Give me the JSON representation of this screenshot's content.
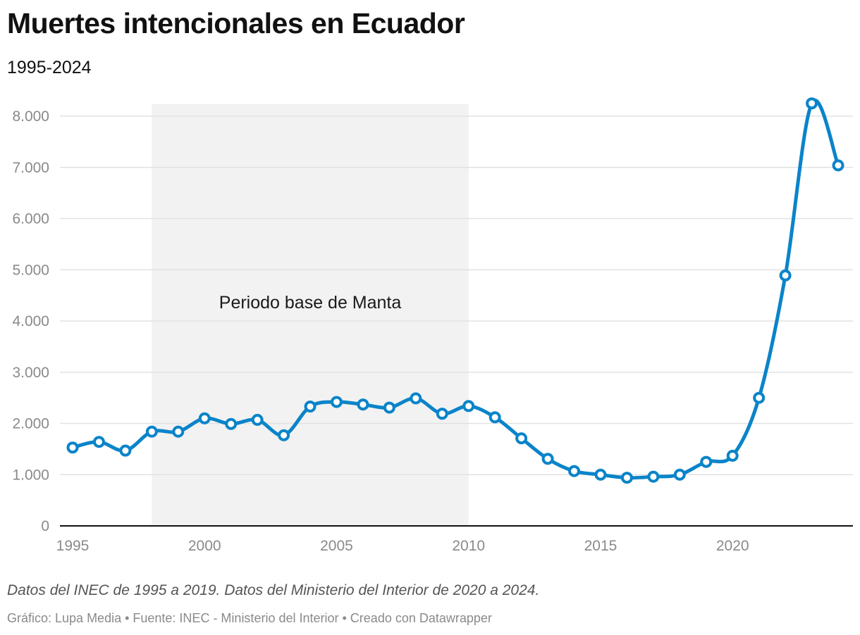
{
  "header": {
    "title": "Muertes intencionales en Ecuador",
    "subtitle": "1995-2024"
  },
  "footer": {
    "note": "Datos del INEC de 1995 a 2019. Datos del Ministerio del Interior de 2020 a 2024.",
    "credits": "Gráfico: Lupa Media • Fuente: INEC - Ministerio del Interior • Creado con Datawrapper"
  },
  "colors": {
    "line": "#0a84c9",
    "marker_fill": "#ffffff",
    "shade": "#f2f2f2",
    "grid": "#e2e2e2",
    "axis": "#111111",
    "tick_text": "#8a8a8a"
  },
  "chart_data": {
    "type": "line",
    "title": "Muertes intencionales en Ecuador",
    "subtitle": "1995-2024",
    "xlabel": "",
    "ylabel": "",
    "x": [
      1995,
      1996,
      1997,
      1998,
      1999,
      2000,
      2001,
      2002,
      2003,
      2004,
      2005,
      2006,
      2007,
      2008,
      2009,
      2010,
      2011,
      2012,
      2013,
      2014,
      2015,
      2016,
      2017,
      2018,
      2019,
      2020,
      2021,
      2022,
      2023,
      2024
    ],
    "series": [
      {
        "name": "Muertes intencionales",
        "values": [
          1530,
          1640,
          1470,
          1840,
          1840,
          2100,
          1990,
          2070,
          1770,
          2330,
          2420,
          2370,
          2310,
          2490,
          2190,
          2340,
          2120,
          1710,
          1310,
          1070,
          1000,
          940,
          960,
          1000,
          1250,
          1370,
          2500,
          4890,
          8250,
          7040
        ]
      }
    ],
    "xlim": [
      1995,
      2024
    ],
    "ylim": [
      0,
      8250
    ],
    "yticks": [
      0,
      1000,
      2000,
      3000,
      4000,
      5000,
      6000,
      7000,
      8000
    ],
    "ytick_labels": [
      "0",
      "1.000",
      "2.000",
      "3.000",
      "4.000",
      "5.000",
      "6.000",
      "7.000",
      "8.000"
    ],
    "xticks": [
      1995,
      2000,
      2005,
      2010,
      2015,
      2020
    ],
    "xtick_labels": [
      "1995",
      "2000",
      "2005",
      "2010",
      "2015",
      "2020"
    ],
    "grid": true,
    "annotations": [
      {
        "type": "range",
        "x_start": 1998,
        "x_end": 2010,
        "label": "Periodo base de Manta"
      }
    ]
  }
}
